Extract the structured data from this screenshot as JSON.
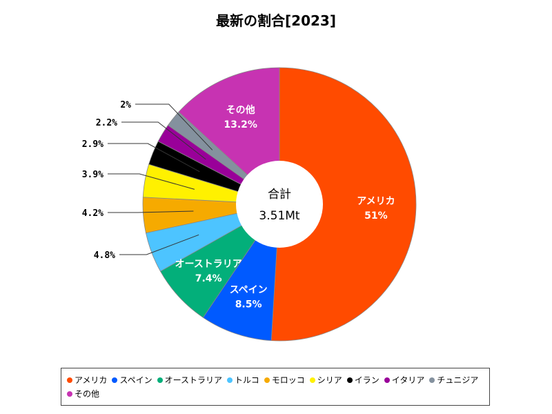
{
  "chart_data": {
    "type": "pie",
    "title": "最新の割合[2023]",
    "center_label": "合計",
    "center_value": "3.51Mt",
    "slices": [
      {
        "name": "アメリカ",
        "value": 51,
        "label": "51%",
        "color": "#FF4B00"
      },
      {
        "name": "スペイン",
        "value": 8.5,
        "label": "8.5%",
        "color": "#005AFF"
      },
      {
        "name": "オーストラリア",
        "value": 7.4,
        "label": "7.4%",
        "color": "#03AF7A"
      },
      {
        "name": "トルコ",
        "value": 4.8,
        "label": "4.8%",
        "color": "#4DC4FF"
      },
      {
        "name": "モロッコ",
        "value": 4.2,
        "label": "4.2%",
        "color": "#F6AA00"
      },
      {
        "name": "シリア",
        "value": 3.9,
        "label": "3.9%",
        "color": "#FFF100"
      },
      {
        "name": "イラン",
        "value": 2.9,
        "label": "2.9%",
        "color": "#000000"
      },
      {
        "name": "イタリア",
        "value": 2.2,
        "label": "2.2%",
        "color": "#990099"
      },
      {
        "name": "チュニジア",
        "value": 2,
        "label": "2%",
        "color": "#84919E"
      },
      {
        "name": "その他",
        "value": 13.2,
        "label": "13.2%",
        "color": "#C733B2"
      }
    ],
    "legend_position": "bottom"
  }
}
